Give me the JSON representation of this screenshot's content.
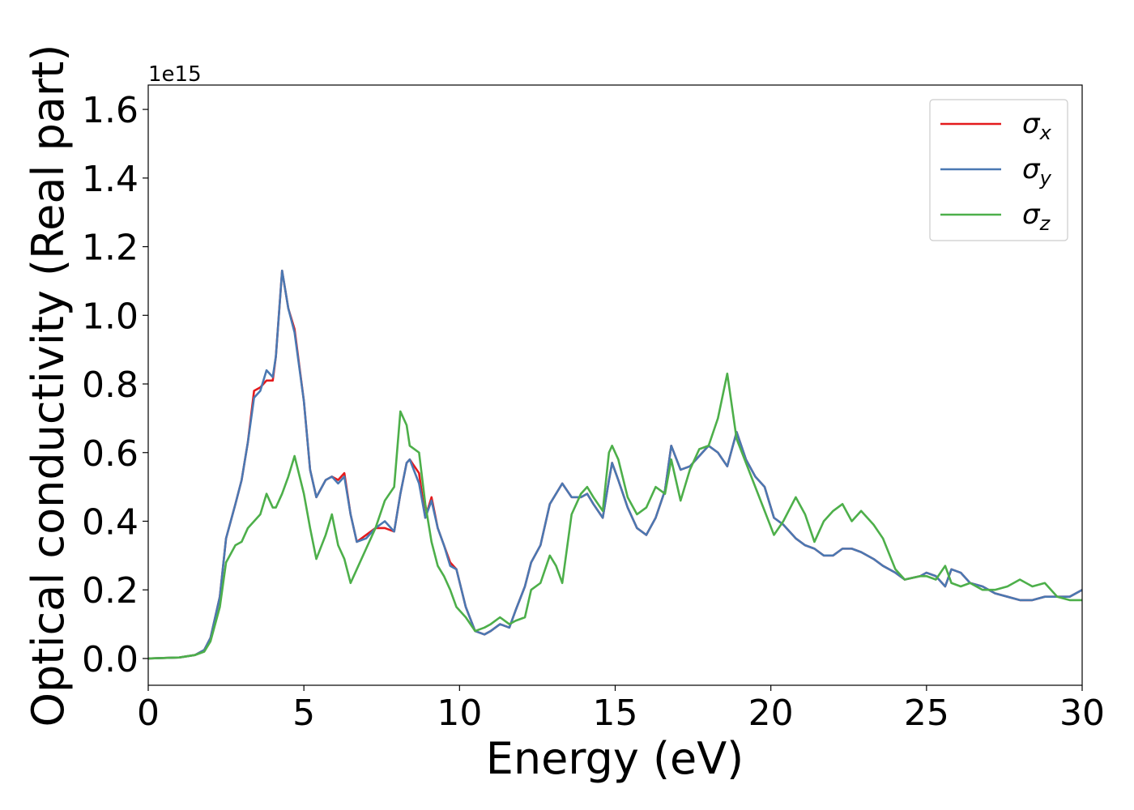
{
  "chart_data": {
    "type": "line",
    "xlabel": "Energy (eV)",
    "ylabel": "Optical conductivity (Real part)",
    "offset_label": "1e15",
    "xlim": [
      0,
      30
    ],
    "ylim": [
      -0.078,
      1.671
    ],
    "xticks": [
      0,
      5,
      10,
      15,
      20,
      25,
      30
    ],
    "yticks": [
      {
        "value": 0,
        "label": "0.0"
      },
      0.2,
      0.4,
      0.6,
      0.8,
      {
        "value": 1,
        "label": "1.0"
      },
      1.2,
      1.4,
      1.6
    ],
    "legend": "upper right",
    "x": [
      0,
      1,
      1.5,
      1.8,
      2.0,
      2.3,
      2.5,
      2.8,
      3.0,
      3.2,
      3.4,
      3.6,
      3.8,
      4.0,
      4.1,
      4.3,
      4.5,
      4.7,
      5.0,
      5.2,
      5.4,
      5.7,
      5.9,
      6.1,
      6.3,
      6.5,
      6.7,
      7.0,
      7.3,
      7.6,
      7.9,
      8.1,
      8.3,
      8.4,
      8.7,
      8.9,
      9.1,
      9.3,
      9.5,
      9.7,
      9.9,
      10.2,
      10.5,
      10.8,
      11.0,
      11.3,
      11.6,
      11.8,
      12.1,
      12.3,
      12.6,
      12.9,
      13.1,
      13.3,
      13.6,
      13.9,
      14.1,
      14.3,
      14.6,
      14.8,
      14.9,
      15.1,
      15.4,
      15.7,
      16.0,
      16.3,
      16.6,
      16.8,
      17.1,
      17.4,
      17.7,
      18.0,
      18.3,
      18.6,
      18.9,
      19.2,
      19.5,
      19.8,
      20.1,
      20.4,
      20.8,
      21.1,
      21.4,
      21.7,
      22.0,
      22.3,
      22.6,
      22.9,
      23.3,
      23.6,
      24.0,
      24.3,
      24.8,
      25.0,
      25.3,
      25.6,
      25.8,
      26.1,
      26.4,
      26.8,
      27.2,
      27.6,
      28.0,
      28.4,
      28.8,
      29.2,
      29.6,
      30.0
    ],
    "series": [
      {
        "name": "σx",
        "color": "#e41a1c",
        "values": [
          0,
          0.003,
          0.01,
          0.025,
          0.06,
          0.18,
          0.35,
          0.45,
          0.52,
          0.63,
          0.78,
          0.79,
          0.81,
          0.81,
          0.88,
          1.13,
          1.02,
          0.96,
          0.75,
          0.55,
          0.47,
          0.52,
          0.53,
          0.52,
          0.54,
          0.42,
          0.34,
          0.36,
          0.38,
          0.38,
          0.37,
          0.48,
          0.57,
          0.58,
          0.54,
          0.41,
          0.47,
          0.38,
          0.33,
          0.28,
          0.26,
          0.15,
          0.08,
          0.07,
          0.08,
          0.1,
          0.09,
          0.14,
          0.21,
          0.28,
          0.33,
          0.45,
          0.48,
          0.51,
          0.47,
          0.47,
          0.48,
          0.45,
          0.41,
          0.52,
          0.57,
          0.52,
          0.44,
          0.38,
          0.36,
          0.41,
          0.49,
          0.62,
          0.55,
          0.56,
          0.59,
          0.62,
          0.6,
          0.56,
          0.66,
          0.58,
          0.53,
          0.5,
          0.41,
          0.39,
          0.35,
          0.33,
          0.32,
          0.3,
          0.3,
          0.32,
          0.32,
          0.31,
          0.29,
          0.27,
          0.25,
          0.23,
          0.24,
          0.25,
          0.24,
          0.21,
          0.26,
          0.25,
          0.22,
          0.21,
          0.19,
          0.18,
          0.17,
          0.17,
          0.18,
          0.18,
          0.18,
          0.2
        ]
      },
      {
        "name": "σy",
        "color": "#4a78b2",
        "values": [
          0,
          0.003,
          0.01,
          0.025,
          0.06,
          0.18,
          0.35,
          0.45,
          0.52,
          0.63,
          0.76,
          0.78,
          0.84,
          0.82,
          0.88,
          1.13,
          1.02,
          0.95,
          0.75,
          0.55,
          0.47,
          0.52,
          0.53,
          0.51,
          0.53,
          0.42,
          0.34,
          0.35,
          0.38,
          0.4,
          0.37,
          0.48,
          0.57,
          0.58,
          0.51,
          0.41,
          0.46,
          0.38,
          0.33,
          0.27,
          0.26,
          0.15,
          0.08,
          0.07,
          0.08,
          0.1,
          0.09,
          0.14,
          0.21,
          0.28,
          0.33,
          0.45,
          0.48,
          0.51,
          0.47,
          0.47,
          0.48,
          0.45,
          0.41,
          0.52,
          0.57,
          0.52,
          0.44,
          0.38,
          0.36,
          0.41,
          0.49,
          0.62,
          0.55,
          0.56,
          0.59,
          0.62,
          0.6,
          0.56,
          0.66,
          0.58,
          0.53,
          0.5,
          0.41,
          0.39,
          0.35,
          0.33,
          0.32,
          0.3,
          0.3,
          0.32,
          0.32,
          0.31,
          0.29,
          0.27,
          0.25,
          0.23,
          0.24,
          0.25,
          0.24,
          0.21,
          0.26,
          0.25,
          0.22,
          0.21,
          0.19,
          0.18,
          0.17,
          0.17,
          0.18,
          0.18,
          0.18,
          0.2
        ]
      },
      {
        "name": "σz",
        "color": "#4daf4a",
        "values": [
          0,
          0.003,
          0.01,
          0.02,
          0.05,
          0.15,
          0.28,
          0.33,
          0.34,
          0.38,
          0.4,
          0.42,
          0.48,
          0.44,
          0.44,
          0.48,
          0.53,
          0.59,
          0.48,
          0.38,
          0.29,
          0.36,
          0.42,
          0.33,
          0.29,
          0.22,
          0.26,
          0.32,
          0.38,
          0.46,
          0.5,
          0.72,
          0.68,
          0.62,
          0.6,
          0.45,
          0.34,
          0.27,
          0.24,
          0.2,
          0.15,
          0.12,
          0.08,
          0.09,
          0.1,
          0.12,
          0.1,
          0.11,
          0.12,
          0.2,
          0.22,
          0.3,
          0.27,
          0.22,
          0.42,
          0.48,
          0.5,
          0.47,
          0.43,
          0.6,
          0.62,
          0.58,
          0.47,
          0.42,
          0.44,
          0.5,
          0.48,
          0.58,
          0.46,
          0.55,
          0.61,
          0.62,
          0.7,
          0.83,
          0.64,
          0.57,
          0.5,
          0.43,
          0.36,
          0.4,
          0.47,
          0.42,
          0.34,
          0.4,
          0.43,
          0.45,
          0.4,
          0.43,
          0.39,
          0.35,
          0.26,
          0.23,
          0.24,
          0.24,
          0.23,
          0.27,
          0.22,
          0.21,
          0.22,
          0.2,
          0.2,
          0.21,
          0.23,
          0.21,
          0.22,
          0.18,
          0.17,
          0.17
        ]
      }
    ]
  }
}
